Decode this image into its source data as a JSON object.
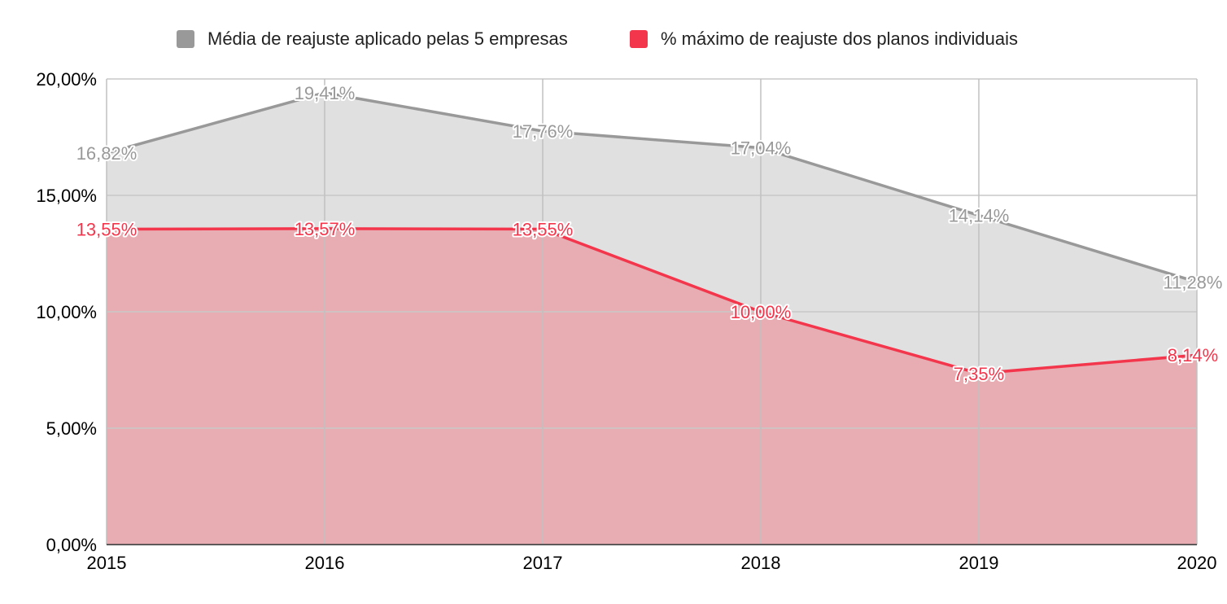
{
  "chart_data": {
    "type": "area",
    "categories": [
      "2015",
      "2016",
      "2017",
      "2018",
      "2019",
      "2020"
    ],
    "series": [
      {
        "name": "Média de reajuste aplicado pelas 5 empresas",
        "color": "#999999",
        "fill": "#e0e0e0",
        "values": [
          16.82,
          19.41,
          17.76,
          17.04,
          14.14,
          11.28
        ],
        "labels": [
          "16,82%",
          "19,41%",
          "17,76%",
          "17,04%",
          "14,14%",
          "11,28%"
        ]
      },
      {
        "name": "% máximo de reajuste dos planos individuais",
        "color": "#f4364c",
        "fill": "#e8adb2",
        "values": [
          13.55,
          13.57,
          13.55,
          10.0,
          7.35,
          8.14
        ],
        "labels": [
          "13,55%",
          "13,57%",
          "13,55%",
          "10,00%",
          "7,35%",
          "8,14%"
        ]
      }
    ],
    "y_ticks": [
      {
        "value": 0,
        "label": "0,00%"
      },
      {
        "value": 5,
        "label": "5,00%"
      },
      {
        "value": 10,
        "label": "10,00%"
      },
      {
        "value": 15,
        "label": "15,00%"
      },
      {
        "value": 20,
        "label": "20,00%"
      }
    ],
    "ylim": [
      0,
      20
    ],
    "grid": true,
    "legend_position": "top",
    "xlabel": "",
    "ylabel": "",
    "title": ""
  }
}
